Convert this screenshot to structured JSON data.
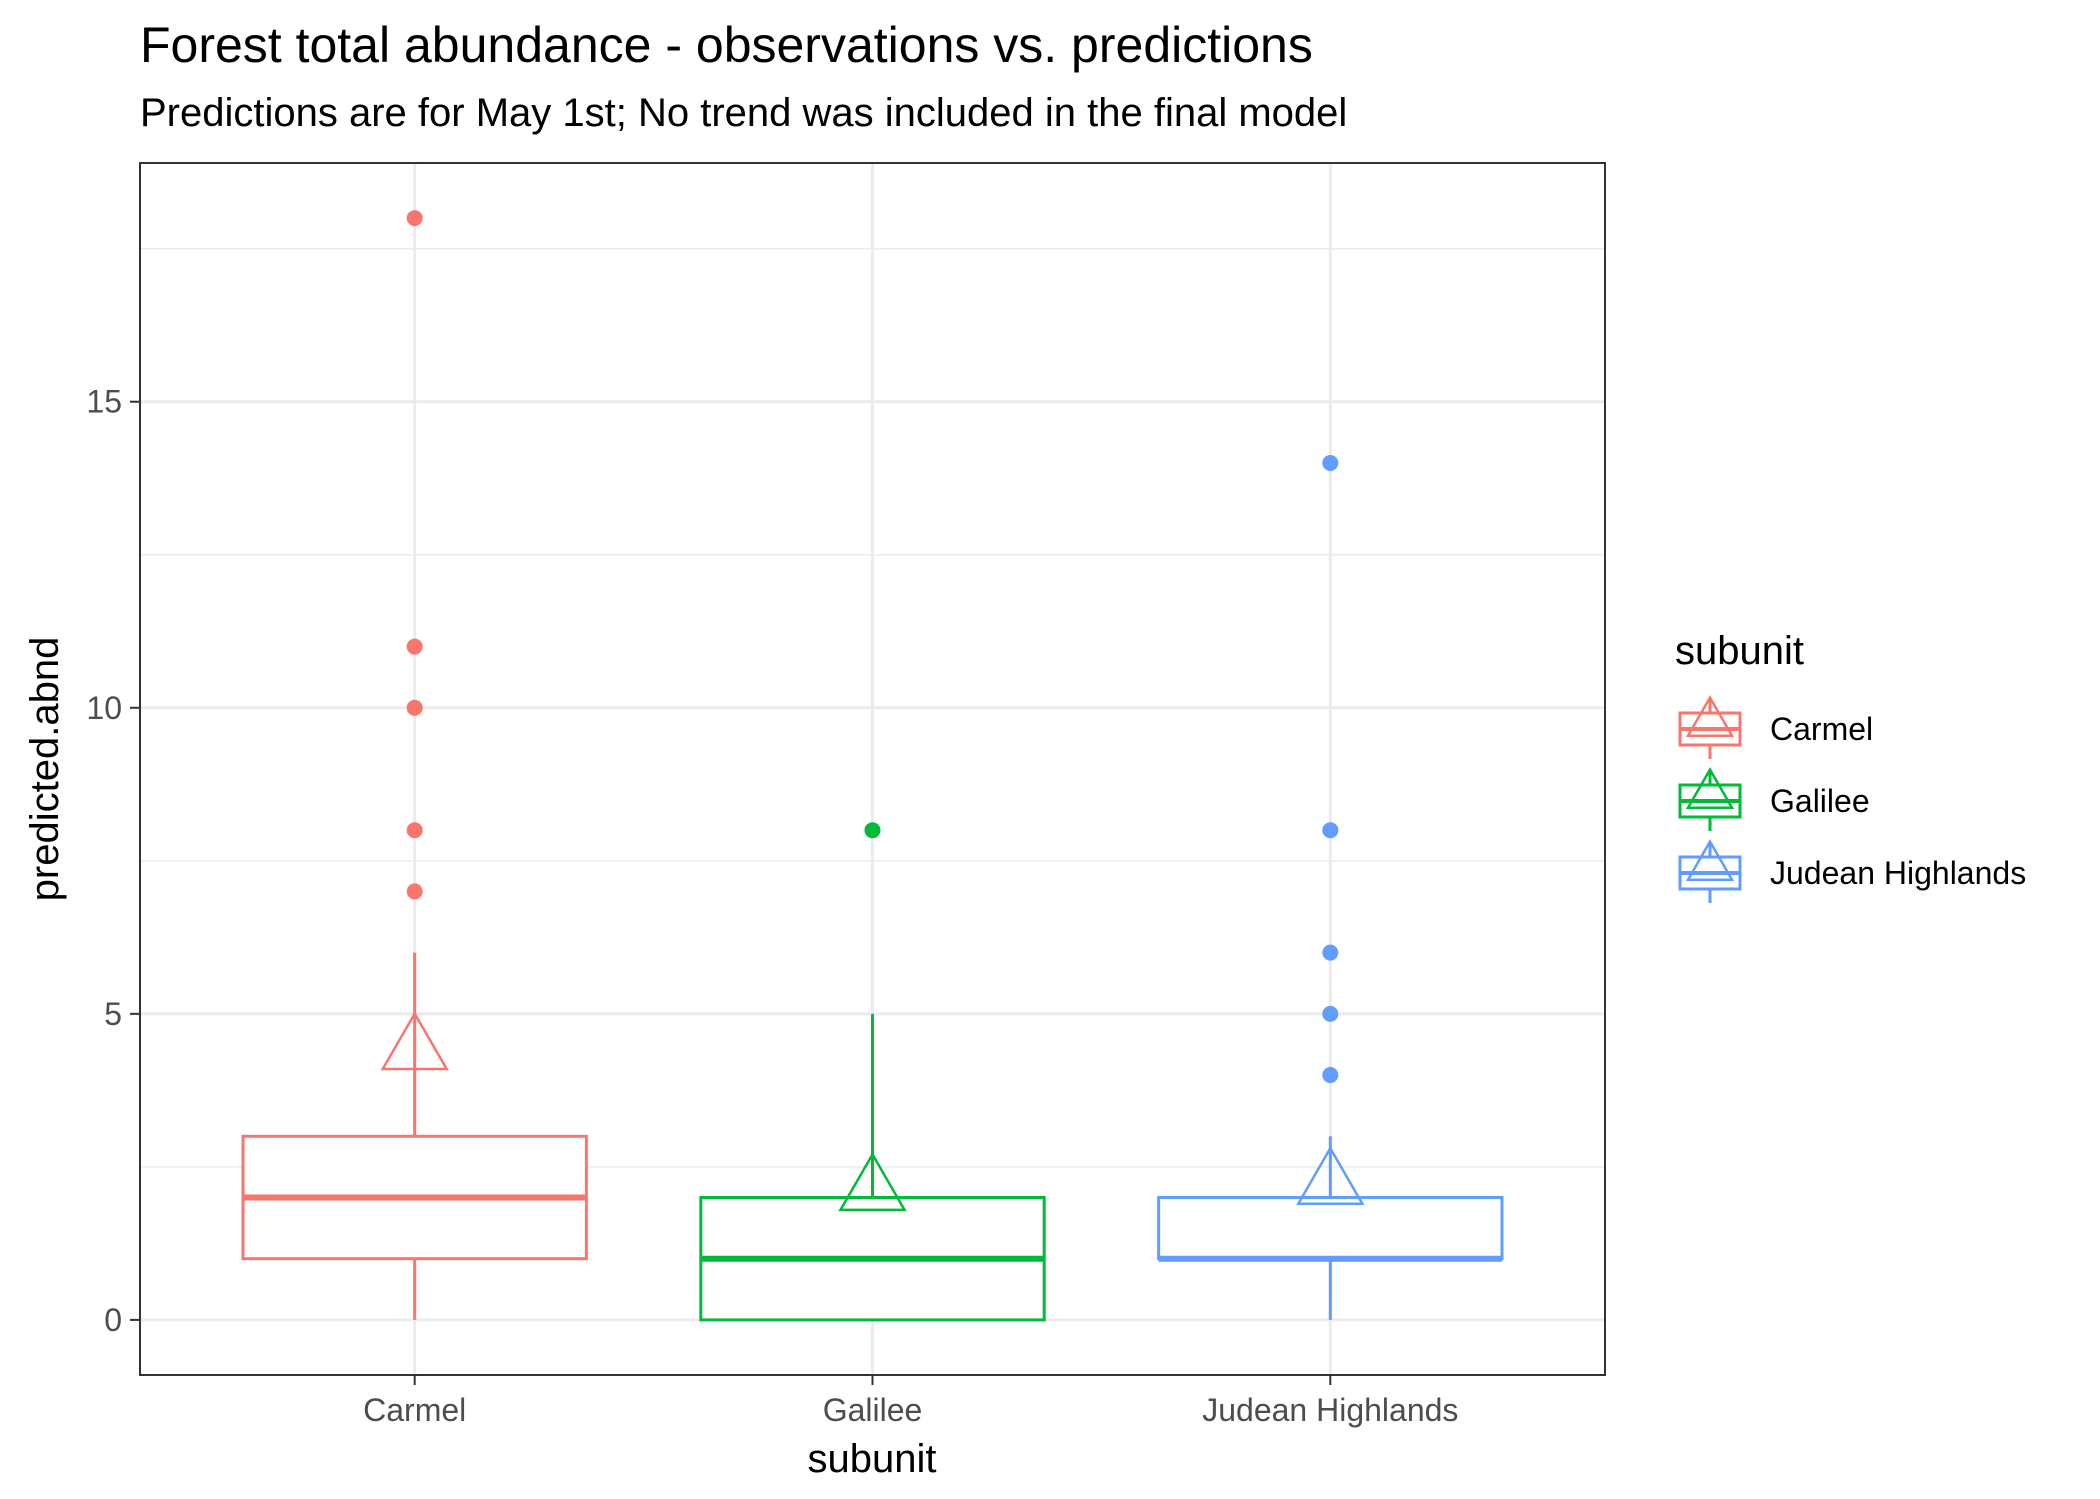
{
  "chart_data": {
    "type": "box",
    "title": "Forest total abundance - observations vs. predictions",
    "subtitle": "Predictions are for May 1st; No trend was included in the final model",
    "xlabel": "subunit",
    "ylabel": "predicted.abnd",
    "ylim": [
      -0.9,
      18.9
    ],
    "yticks": [
      0,
      5,
      10,
      15
    ],
    "grid": true,
    "legend": {
      "title": "subunit",
      "position": "right"
    },
    "categories": [
      "Carmel",
      "Galilee",
      "Judean Highlands"
    ],
    "series": [
      {
        "name": "Carmel",
        "color": "#F8766D",
        "box": {
          "whisker_low": 0,
          "q1": 1,
          "median": 2,
          "q3": 3,
          "whisker_high": 6
        },
        "outliers": [
          7,
          8,
          10,
          11,
          18
        ],
        "predicted_mean": 4.4
      },
      {
        "name": "Galilee",
        "color": "#00BA38",
        "box": {
          "whisker_low": 0,
          "q1": 0,
          "median": 1,
          "q3": 2,
          "whisker_high": 5
        },
        "outliers": [
          8
        ],
        "predicted_mean": 2.1
      },
      {
        "name": "Judean Highlands",
        "color": "#619CFF",
        "box": {
          "whisker_low": 0,
          "q1": 1,
          "median": 1,
          "q3": 2,
          "whisker_high": 3
        },
        "outliers": [
          4,
          5,
          6,
          8,
          14
        ],
        "predicted_mean": 2.2
      }
    ]
  }
}
